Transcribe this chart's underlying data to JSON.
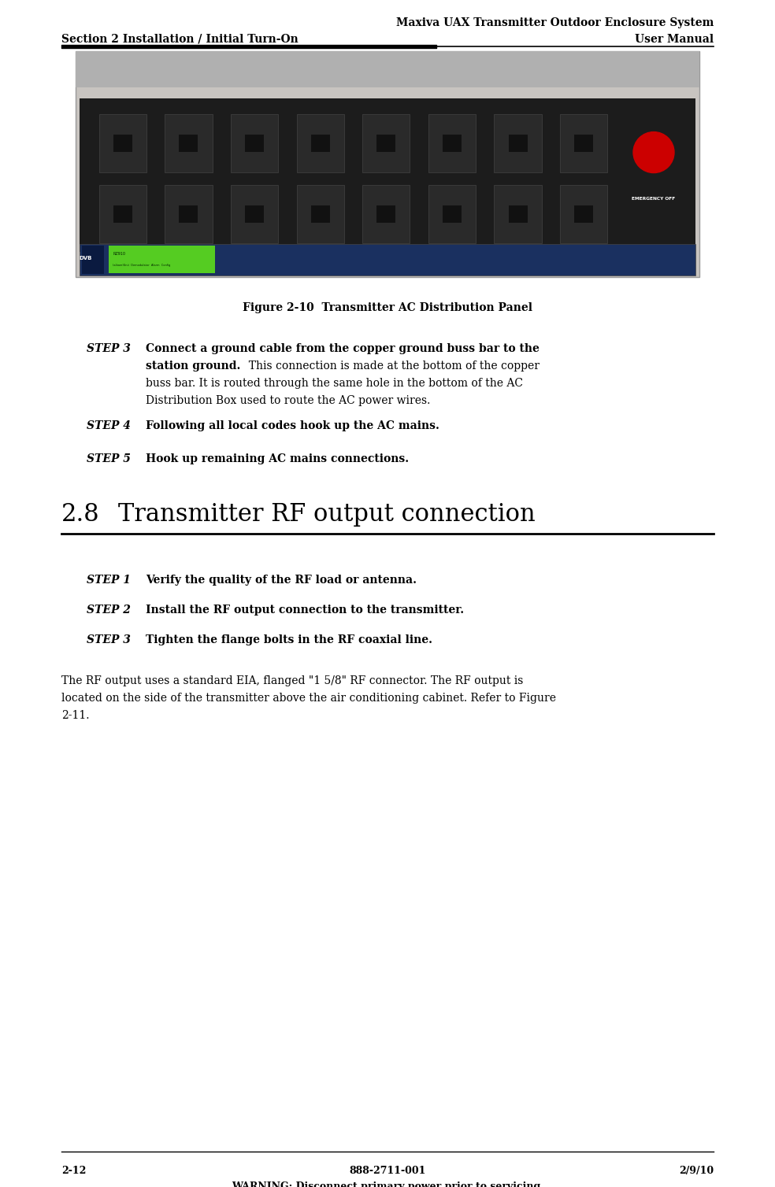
{
  "page_width": 9.84,
  "page_height": 15.08,
  "dpi": 100,
  "bg_color": "#ffffff",
  "header_line1_right": "Maxiva UAX Transmitter Outdoor Enclosure System",
  "header_line2_right": "User Manual",
  "header_left": "Section 2 Installation / Initial Turn-On",
  "figure_caption": "Figure 2-10  Transmitter AC Distribution Panel",
  "step3_label": "STEP 3",
  "step3_bold1": "Connect a ground cable from the copper ground buss bar to the",
  "step3_bold2": "station ground.",
  "step3_normal": "  This connection is made at the bottom of the copper buss bar. It is routed through the same hole in the bottom of the AC Distribution Box used to route the AC power wires.",
  "step4_label": "STEP 4",
  "step4_bold": "Following all local codes hook up the AC mains.",
  "step5_label": "STEP 5",
  "step5_bold": "Hook up remaining AC mains connections.",
  "section_num": "2.8",
  "section_title": "Transmitter RF output connection",
  "step1_label": "STEP 1",
  "step1_bold": "Verify the quality of the RF load or antenna.",
  "step2_label": "STEP 2",
  "step2_bold": "Install the RF output connection to the transmitter",
  "step3b_label": "STEP 3",
  "step3b_bold": "Tighten the flange bolts in the RF coaxial line.",
  "para_text": "The RF output uses a standard EIA, flanged \"1 5/8\" RF connector. The RF output is located on the side of the transmitter above the air conditioning cabinet. Refer to Figure 2-11.",
  "footer_left": "2-12",
  "footer_center": "888-2711-001",
  "footer_right": "2/9/10",
  "footer_warning": "WARNING: Disconnect primary power prior to servicing.",
  "ml": 0.78,
  "mr": 0.78,
  "indent_step_label": 1.1,
  "indent_step_text": 1.85,
  "header_fontsize": 10,
  "body_fontsize": 10,
  "section_heading_fontsize": 22,
  "footer_fontsize": 9
}
